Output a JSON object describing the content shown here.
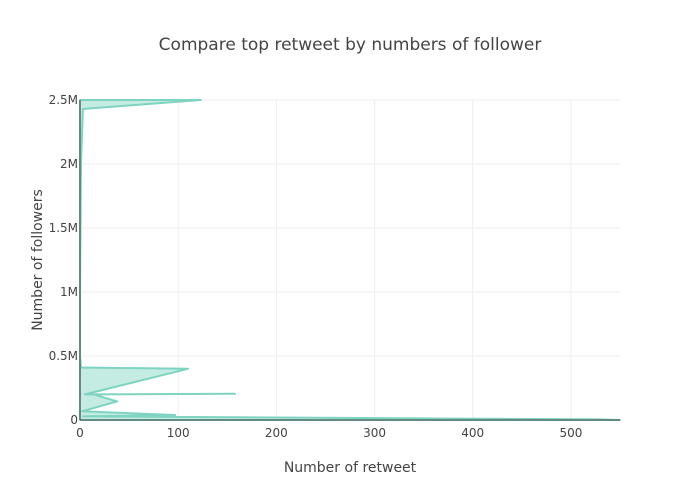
{
  "chart_data": {
    "type": "area",
    "title": "Compare top retweet by numbers of follower",
    "xlabel": "Number of retweet",
    "ylabel": "Number of followers",
    "xlim": [
      0,
      550
    ],
    "ylim": [
      0,
      2500000
    ],
    "x_ticks": [
      0,
      100,
      200,
      300,
      400,
      500
    ],
    "x_tick_labels": [
      "0",
      "100",
      "200",
      "300",
      "400",
      "500"
    ],
    "y_ticks": [
      0,
      500000,
      1000000,
      1500000,
      2000000,
      2500000
    ],
    "y_tick_labels": [
      "0",
      "0.5M",
      "1M",
      "1.5M",
      "2M",
      "2.5M"
    ],
    "grid": true,
    "legend": false,
    "fill": "tozerox",
    "colors": {
      "line": "#7fd4c1",
      "fill": "rgba(127,212,193,0.45)",
      "axis": "#444444"
    },
    "series": [
      {
        "points": [
          [
            0,
            2500000
          ],
          [
            123,
            2500000
          ],
          [
            3,
            2430000
          ],
          [
            1,
            2000000
          ],
          [
            0,
            1000000
          ],
          [
            0,
            500000
          ],
          [
            1,
            410000
          ],
          [
            110,
            400000
          ],
          [
            5,
            200000
          ],
          [
            158,
            205000
          ],
          [
            14,
            200000
          ],
          [
            38,
            145000
          ],
          [
            2,
            68000
          ],
          [
            97,
            39000
          ],
          [
            3,
            28000
          ],
          [
            366,
            12000
          ],
          [
            530,
            5000
          ],
          [
            550,
            0
          ],
          [
            0,
            0
          ]
        ]
      }
    ]
  }
}
